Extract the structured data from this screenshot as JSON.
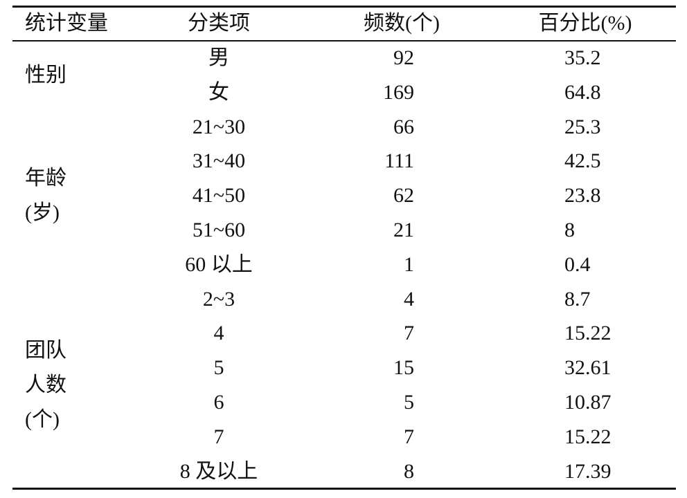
{
  "headers": [
    "统计变量",
    "分类项",
    "频数(个)",
    "百分比(%)"
  ],
  "groups": [
    {
      "label_lines": [
        "性别"
      ],
      "rows": [
        {
          "category": "男",
          "count": "92",
          "percent": "35.2"
        },
        {
          "category": "女",
          "count": "169",
          "percent": "64.8"
        }
      ]
    },
    {
      "label_lines": [
        "年龄",
        "(岁)"
      ],
      "rows": [
        {
          "category": "21~30",
          "count": "66",
          "percent": "25.3"
        },
        {
          "category": "31~40",
          "count": "111",
          "percent": "42.5"
        },
        {
          "category": "41~50",
          "count": "62",
          "percent": "23.8"
        },
        {
          "category": "51~60",
          "count": "21",
          "percent": "8"
        },
        {
          "category": "60 以上",
          "count": "1",
          "percent": "0.4"
        }
      ]
    },
    {
      "label_lines": [
        "团队",
        "人数",
        "(个)"
      ],
      "rows": [
        {
          "category": "2~3",
          "count": "4",
          "percent": "8.7"
        },
        {
          "category": "4",
          "count": "7",
          "percent": "15.22"
        },
        {
          "category": "5",
          "count": "15",
          "percent": "32.61"
        },
        {
          "category": "6",
          "count": "5",
          "percent": "10.87"
        },
        {
          "category": "7",
          "count": "7",
          "percent": "15.22"
        },
        {
          "category": "8 及以上",
          "count": "8",
          "percent": "17.39"
        }
      ]
    }
  ]
}
